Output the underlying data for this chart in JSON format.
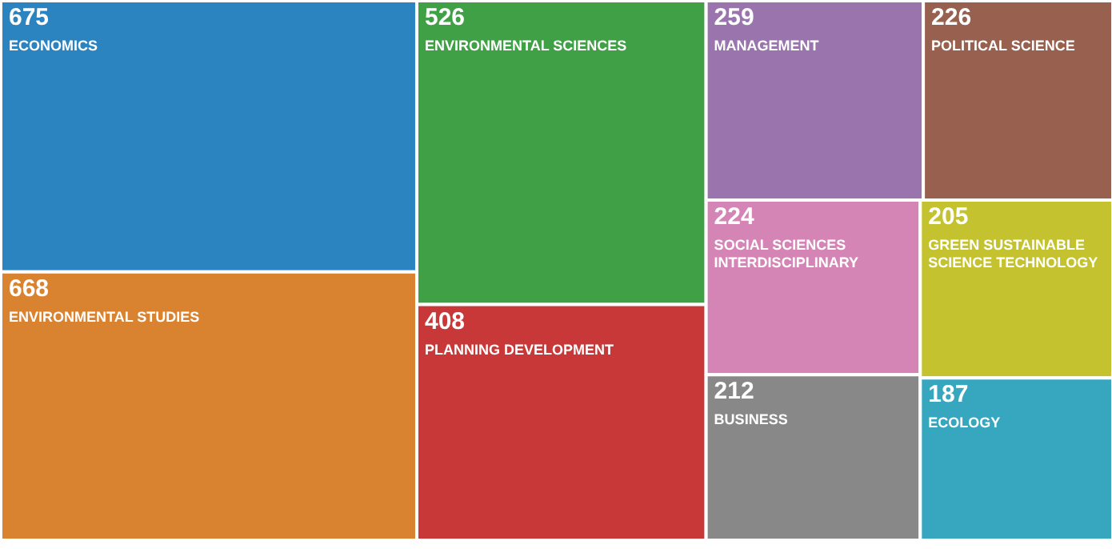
{
  "chart_data": {
    "type": "other",
    "categories": [
      "ECONOMICS",
      "ENVIRONMENTAL STUDIES",
      "ENVIRONMENTAL SCIENCES",
      "PLANNING DEVELOPMENT",
      "MANAGEMENT",
      "POLITICAL SCIENCE",
      "SOCIAL SCIENCES INTERDISCIPLINARY",
      "BUSINESS",
      "GREEN SUSTAINABLE SCIENCE TECHNOLOGY",
      "ECOLOGY"
    ],
    "values": [
      675,
      668,
      526,
      408,
      259,
      226,
      224,
      212,
      205,
      187
    ],
    "colors": [
      "#2b84c0",
      "#d9822f",
      "#40a046",
      "#c93838",
      "#9a74ad",
      "#97604f",
      "#d585b5",
      "#888888",
      "#c4c22f",
      "#36a7bf"
    ],
    "data_labels": true
  }
}
